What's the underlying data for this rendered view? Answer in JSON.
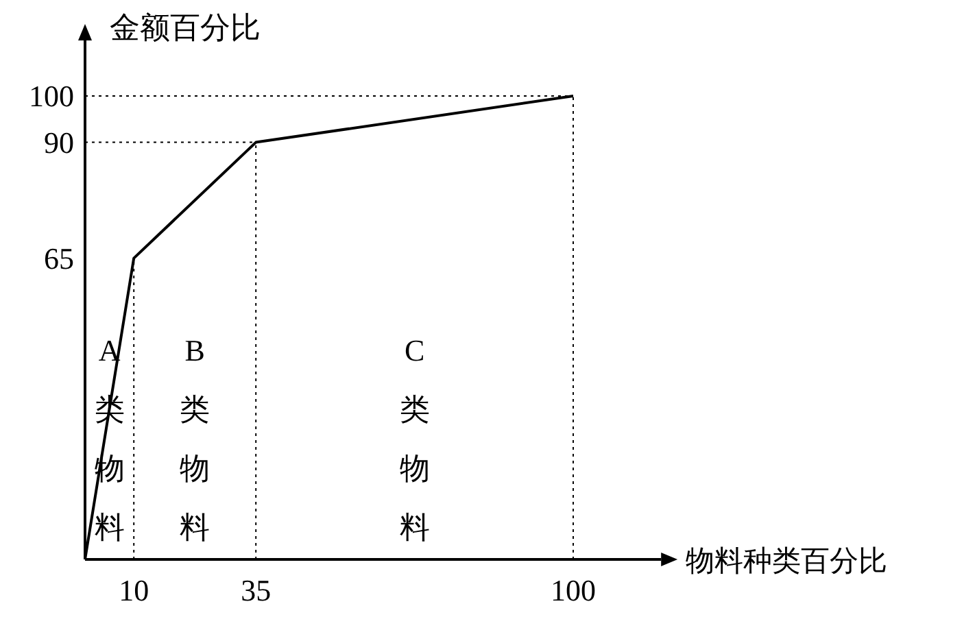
{
  "chart_data": {
    "type": "line",
    "xlabel": "物料种类百分比",
    "ylabel": "金额百分比",
    "x": [
      0,
      10,
      35,
      100
    ],
    "series": [
      {
        "color": "#000000",
        "values": [
          0,
          65,
          90,
          100
        ]
      }
    ],
    "xlim": [
      0,
      118
    ],
    "ylim": [
      0,
      112
    ],
    "xticks": [
      10,
      35,
      100
    ],
    "yticks": [
      65,
      90,
      100
    ],
    "marker": "none",
    "line_style": "solid",
    "ref_lines": [
      {
        "axis": "y",
        "value": 100,
        "line_style": "dotted"
      },
      {
        "axis": "y",
        "value": 90,
        "line_style": "dotted"
      },
      {
        "axis": "x",
        "value": 10,
        "line_style": "dotted"
      },
      {
        "axis": "x",
        "value": 35,
        "line_style": "dotted"
      },
      {
        "axis": "x",
        "value": 100,
        "line_style": "dotted"
      }
    ],
    "annotations": [
      "A类物料",
      "B类物料",
      "C类物料"
    ]
  }
}
